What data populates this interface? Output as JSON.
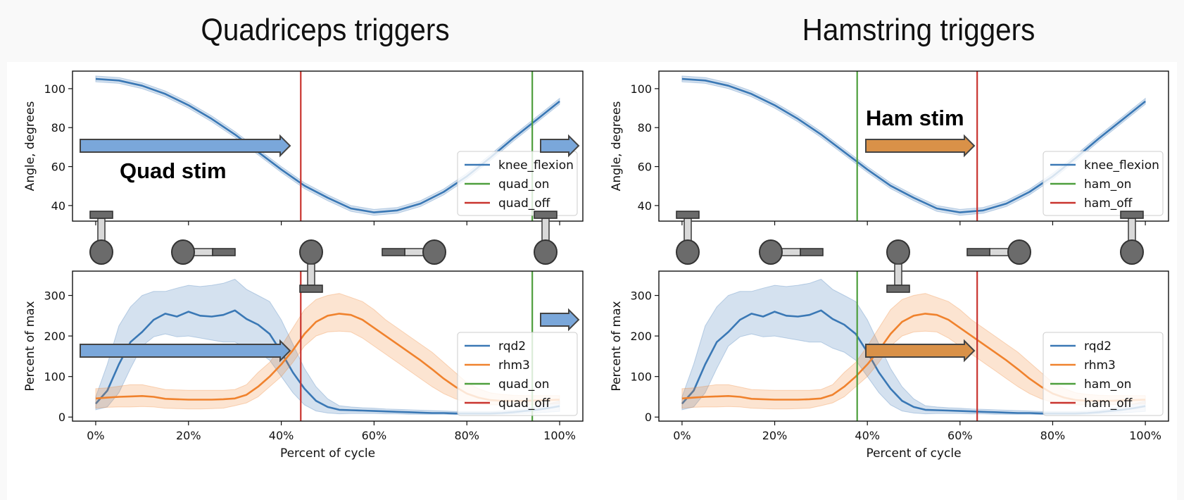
{
  "titles": {
    "left": "Quadriceps triggers",
    "right": "Hamstring triggers"
  },
  "colors": {
    "knee": "#3a78b5",
    "rqd2": "#3a78b5",
    "rhm3": "#f0822d",
    "on": "#4e9f3d",
    "off": "#c9342f",
    "quad_arrow": "#7aa7da",
    "ham_arrow": "#d99148",
    "leg_dark": "#6b6b6b",
    "leg_light": "#d9d9d9"
  },
  "stim_labels": {
    "quad": "Quad stim",
    "ham": "Ham stim"
  },
  "chart_data": [
    {
      "id": "quad-angle",
      "type": "line",
      "title": "",
      "xlabel": "",
      "ylabel": "Angle, degrees",
      "xlim": [
        -5,
        105
      ],
      "ylim": [
        32,
        109
      ],
      "yticks": [
        40,
        60,
        80,
        100
      ],
      "xticks": [
        0,
        20,
        40,
        60,
        80,
        100
      ],
      "x": [
        0,
        5,
        10,
        15,
        20,
        25,
        30,
        35,
        40,
        45,
        50,
        55,
        60,
        65,
        70,
        75,
        80,
        85,
        90,
        95,
        100
      ],
      "series": [
        {
          "name": "knee_flexion",
          "values": [
            105,
            104.2,
            101.5,
            97.3,
            91.5,
            84.5,
            76.5,
            67.5,
            58.5,
            50.2,
            44,
            38.5,
            36.5,
            37.5,
            41,
            47,
            55,
            64.5,
            74.5,
            84,
            93.5
          ],
          "band": 1.5
        }
      ],
      "vlines": [
        {
          "name": "quad_on",
          "x": 94.1,
          "color_key": "on"
        },
        {
          "name": "quad_off",
          "x": 44.2,
          "color_key": "off"
        }
      ],
      "legend": [
        "knee_flexion",
        "quad_on",
        "quad_off"
      ],
      "legend_position": "lower-right"
    },
    {
      "id": "quad-emg",
      "type": "line",
      "xlabel": "Percent of cycle",
      "ylabel": "Percent of max",
      "xlim": [
        -5,
        105
      ],
      "ylim": [
        -10,
        360
      ],
      "yticks": [
        0,
        100,
        200,
        300
      ],
      "xticks": [
        0,
        20,
        40,
        60,
        80,
        100
      ],
      "xtick_labels": [
        "0%",
        "20%",
        "40%",
        "60%",
        "80%",
        "100%"
      ],
      "x": [
        0,
        2.5,
        5,
        7.5,
        10,
        12.5,
        15,
        17.5,
        20,
        22.5,
        25,
        27.5,
        30,
        32.5,
        35,
        37.5,
        40,
        42.5,
        45,
        47.5,
        50,
        52.5,
        55,
        57.5,
        60,
        62.5,
        65,
        67.5,
        70,
        72.5,
        75,
        77.5,
        80,
        82.5,
        85,
        87.5,
        90,
        92.5,
        95,
        97.5,
        100
      ],
      "series": [
        {
          "name": "rqd2",
          "values": [
            33,
            65,
            130,
            185,
            210,
            240,
            255,
            248,
            260,
            250,
            248,
            252,
            263,
            242,
            228,
            205,
            160,
            110,
            70,
            40,
            25,
            18,
            17,
            16,
            15,
            14,
            13,
            12,
            11,
            10,
            10,
            9,
            9,
            9,
            9,
            10,
            12,
            15,
            18,
            22,
            27
          ],
          "lower": [
            18,
            25,
            60,
            120,
            175,
            198,
            205,
            198,
            200,
            195,
            190,
            185,
            185,
            170,
            160,
            140,
            100,
            60,
            30,
            15,
            10,
            8,
            9,
            9,
            9,
            8,
            8,
            7,
            7,
            7,
            7,
            6,
            6,
            6,
            6,
            7,
            8,
            9,
            10,
            12,
            14
          ],
          "upper": [
            50,
            130,
            225,
            272,
            300,
            310,
            310,
            318,
            325,
            322,
            325,
            330,
            340,
            315,
            300,
            285,
            240,
            180,
            120,
            75,
            45,
            28,
            25,
            23,
            22,
            20,
            19,
            18,
            17,
            16,
            15,
            14,
            14,
            14,
            14,
            15,
            17,
            21,
            26,
            32,
            40
          ]
        },
        {
          "name": "rhm3",
          "values": [
            46,
            48,
            50,
            51,
            52,
            50,
            45,
            44,
            43,
            43,
            43,
            44,
            46,
            55,
            75,
            100,
            130,
            165,
            205,
            235,
            250,
            255,
            252,
            240,
            220,
            200,
            180,
            160,
            140,
            118,
            95,
            75,
            58,
            48,
            42,
            40,
            40,
            40,
            41,
            42,
            43
          ],
          "lower": [
            22,
            24,
            25,
            25,
            26,
            25,
            22,
            21,
            20,
            20,
            21,
            22,
            28,
            35,
            50,
            75,
            100,
            135,
            175,
            200,
            210,
            212,
            210,
            195,
            175,
            155,
            135,
            115,
            95,
            75,
            58,
            45,
            36,
            32,
            30,
            30,
            30,
            30,
            31,
            32,
            33
          ],
          "upper": [
            70,
            72,
            76,
            80,
            80,
            74,
            68,
            67,
            66,
            66,
            66,
            66,
            68,
            80,
            110,
            135,
            175,
            220,
            265,
            290,
            300,
            305,
            295,
            285,
            265,
            240,
            220,
            200,
            180,
            160,
            135,
            110,
            85,
            70,
            60,
            56,
            54,
            53,
            53,
            53,
            53
          ]
        }
      ],
      "vlines": [
        {
          "name": "quad_on",
          "x": 94.1,
          "color_key": "on"
        },
        {
          "name": "quad_off",
          "x": 44.2,
          "color_key": "off"
        }
      ],
      "legend": [
        "rqd2",
        "rhm3",
        "quad_on",
        "quad_off"
      ],
      "legend_position": "lower-right"
    },
    {
      "id": "ham-angle",
      "type": "line",
      "ylabel": "Angle, degrees",
      "xlim": [
        -5,
        105
      ],
      "ylim": [
        32,
        109
      ],
      "yticks": [
        40,
        60,
        80,
        100
      ],
      "xticks": [
        0,
        20,
        40,
        60,
        80,
        100
      ],
      "x": [
        0,
        5,
        10,
        15,
        20,
        25,
        30,
        35,
        40,
        45,
        50,
        55,
        60,
        65,
        70,
        75,
        80,
        85,
        90,
        95,
        100
      ],
      "series": [
        {
          "name": "knee_flexion",
          "values": [
            105,
            104.2,
            101.5,
            97.3,
            91.5,
            84.5,
            76.5,
            67.5,
            58.5,
            50.2,
            44,
            38.5,
            36.5,
            37.5,
            41,
            47,
            55,
            64.5,
            74.5,
            84,
            93.5
          ],
          "band": 1.5
        }
      ],
      "vlines": [
        {
          "name": "ham_on",
          "x": 37.8,
          "color_key": "on"
        },
        {
          "name": "ham_off",
          "x": 63.7,
          "color_key": "off"
        }
      ],
      "legend": [
        "knee_flexion",
        "ham_on",
        "ham_off"
      ],
      "legend_position": "lower-right"
    },
    {
      "id": "ham-emg",
      "type": "line",
      "xlabel": "Percent of cycle",
      "ylabel": "Percent of max",
      "xlim": [
        -5,
        105
      ],
      "ylim": [
        -10,
        360
      ],
      "yticks": [
        0,
        100,
        200,
        300
      ],
      "xticks": [
        0,
        20,
        40,
        60,
        80,
        100
      ],
      "xtick_labels": [
        "0%",
        "20%",
        "40%",
        "60%",
        "80%",
        "100%"
      ],
      "x": "same_as_quad-emg",
      "series": "same_as_quad-emg",
      "vlines": [
        {
          "name": "ham_on",
          "x": 37.8,
          "color_key": "on"
        },
        {
          "name": "ham_off",
          "x": 63.7,
          "color_key": "off"
        }
      ],
      "legend": [
        "rqd2",
        "rhm3",
        "ham_on",
        "ham_off"
      ],
      "legend_position": "lower-right"
    }
  ]
}
